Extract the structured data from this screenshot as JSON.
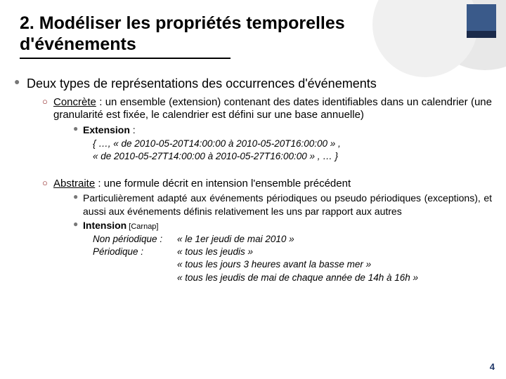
{
  "title": "2. Modéliser les propriétés temporelles d'événements",
  "lvl1_text": "Deux types de représentations des occurrences d'événements",
  "concrete": {
    "label": "Concrète",
    "desc": " : un ensemble (extension) contenant des dates identifiables dans un calendrier (une granularité est fixée, le calendrier est défini sur une base annuelle)",
    "ext_label": "Extension",
    "ext_line1": "{ …, « de 2010-05-20T14:00:00 à 2010-05-20T16:00:00 » ,",
    "ext_line2": "« de 2010-05-27T14:00:00 à 2010-05-27T16:00:00 » , … }"
  },
  "abstract": {
    "label": "Abstraite",
    "desc": " : une formule décrit en intension l'ensemble précédent",
    "adapt": "Particulièrement adapté aux événements périodiques ou pseudo périodiques (exceptions), et aussi aux événements définis relativement les uns par rapport aux autres",
    "int_label": "Intension",
    "int_ref": " [Carnap]",
    "np_label": "Non périodique :",
    "np_val": "« le 1er jeudi de mai 2010 »",
    "p_label": "Périodique :",
    "p_val1": "« tous les jeudis »",
    "p_val2": "« tous les jours 3 heures avant la basse mer »",
    "p_val3": "« tous les jeudis de mai de chaque année de 14h à 16h »"
  },
  "page_number": "4"
}
